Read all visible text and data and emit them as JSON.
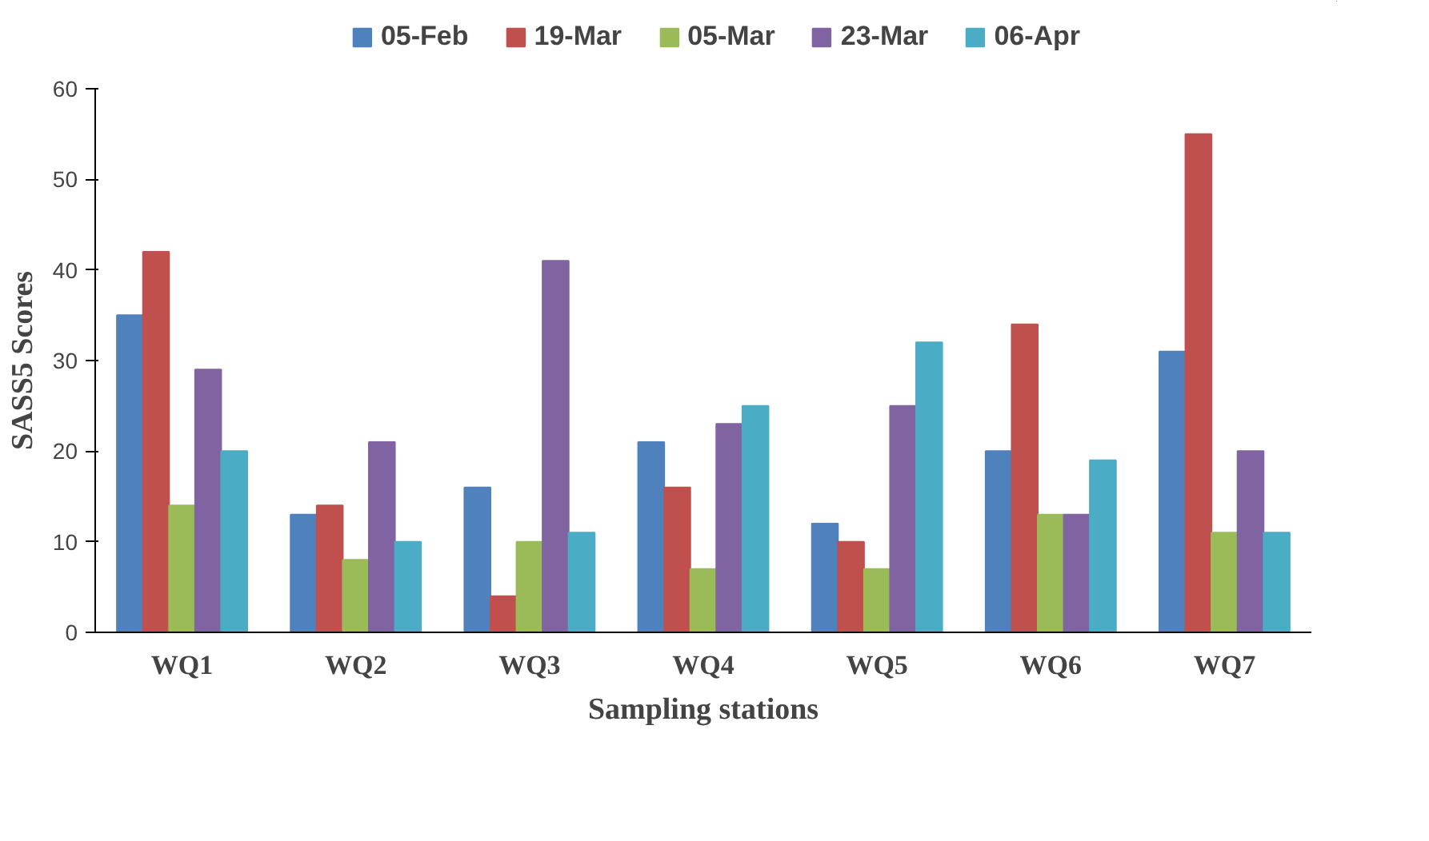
{
  "chart_data": {
    "type": "bar",
    "xlabel": "Sampling stations",
    "ylabel": "SASS5 Scores",
    "categories": [
      "WQ1",
      "WQ2",
      "WQ3",
      "WQ4",
      "WQ5",
      "WQ6",
      "WQ7"
    ],
    "series": [
      {
        "name": "05-Feb",
        "color": "#4f81bd",
        "values": [
          35,
          13,
          16,
          21,
          12,
          20,
          31
        ]
      },
      {
        "name": "19-Mar",
        "color": "#c0504d",
        "values": [
          42,
          14,
          4,
          16,
          10,
          34,
          55
        ]
      },
      {
        "name": "05-Mar",
        "color": "#9bbb59",
        "values": [
          14,
          8,
          10,
          7,
          7,
          13,
          11
        ]
      },
      {
        "name": "23-Mar",
        "color": "#8064a2",
        "values": [
          29,
          21,
          41,
          23,
          25,
          13,
          20
        ]
      },
      {
        "name": "06-Apr",
        "color": "#4bacc6",
        "values": [
          20,
          10,
          11,
          25,
          32,
          19,
          11
        ]
      }
    ],
    "ylim": [
      0,
      60
    ],
    "yticks": [
      0,
      10,
      20,
      30,
      40,
      50,
      60
    ],
    "grid": false,
    "legend": "top"
  }
}
